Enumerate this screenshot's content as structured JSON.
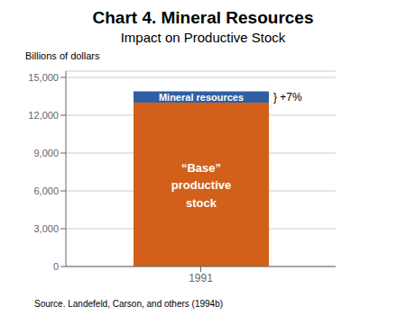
{
  "chart_data": {
    "type": "bar",
    "title": "Chart 4. Mineral Resources",
    "subtitle": "Impact on Productive Stock",
    "ylabel": "Billions of dollars",
    "source": "Source. Landefeld, Carson, and others (1994b)",
    "annotation": "} +7%",
    "stacked": true,
    "categories": [
      "1991"
    ],
    "series": [
      {
        "name": "“Base”\nproductive\nstock",
        "color": "#D2601A",
        "values": [
          13000
        ]
      },
      {
        "name": "Mineral resources",
        "color": "#2E5FA3",
        "values": [
          900
        ]
      }
    ],
    "ylim": [
      0,
      15500
    ],
    "yticks": [
      0,
      {
        "value": 3000,
        "label": "3,000"
      },
      {
        "value": 6000,
        "label": "6,000"
      },
      {
        "value": 9000,
        "label": "9,000"
      },
      {
        "value": 12000,
        "label": "12,000"
      },
      {
        "value": 15000,
        "label": "15,000"
      }
    ],
    "grid": true
  }
}
